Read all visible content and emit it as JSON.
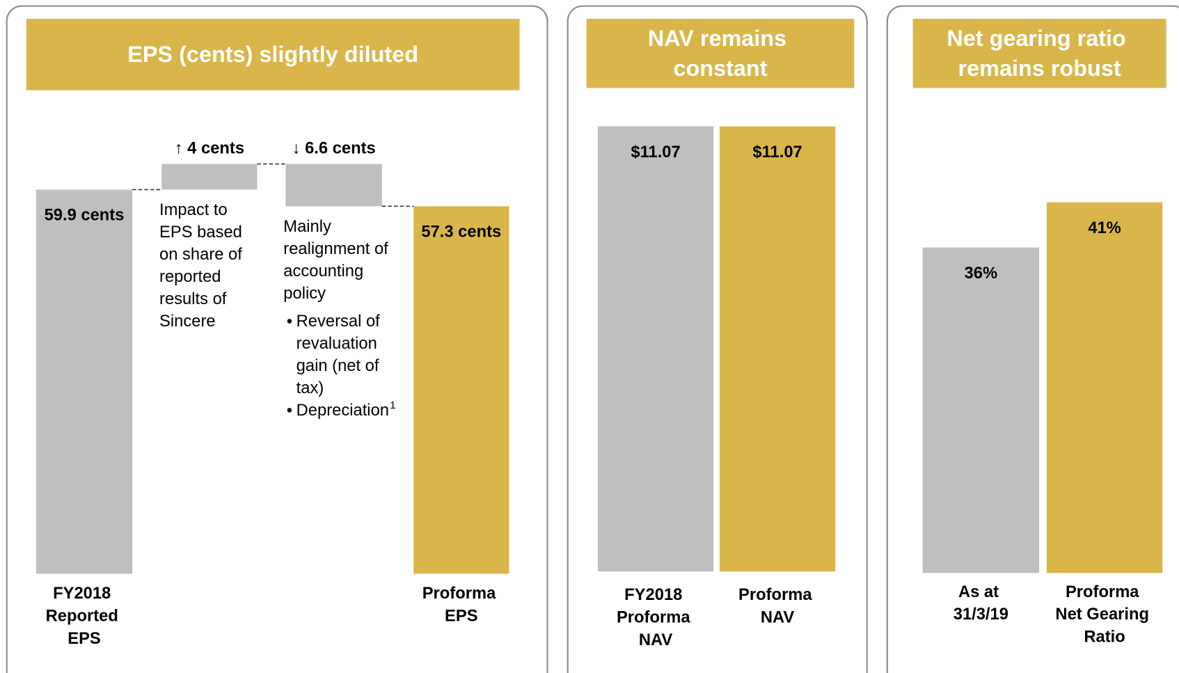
{
  "chart_data": [
    {
      "type": "waterfall",
      "title": "EPS (cents) slightly diluted",
      "categories": [
        "FY2018 Reported EPS",
        null,
        null,
        "Proforma EPS"
      ],
      "values": [
        59.9,
        4,
        -6.6,
        57.3
      ],
      "value_labels": [
        "59.9 cents",
        "↑ 4 cents",
        "↓ 6.6 cents",
        "57.3 cents"
      ],
      "totals": [
        true,
        false,
        false,
        true
      ],
      "colors": [
        "#bfbfbf",
        "#bfbfbf",
        "#bfbfbf",
        "#dab64a"
      ],
      "header_color": "#dab64a",
      "annotations": [
        {
          "text": "Impact to EPS based on share of reported results of Sincere"
        },
        {
          "text": "Mainly realignment of accounting policy",
          "bullets": [
            {
              "text": "Reversal of revaluation gain (net of tax)"
            },
            {
              "text": "Depreciation",
              "footnote": "1"
            }
          ]
        }
      ]
    },
    {
      "type": "bar",
      "title": "NAV remains constant",
      "categories": [
        "FY2018 Proforma NAV",
        "Proforma NAV"
      ],
      "values": [
        11.07,
        11.07
      ],
      "value_labels": [
        "$11.07",
        "$11.07"
      ],
      "colors": [
        "#bfbfbf",
        "#dab64a"
      ],
      "header_color": "#dab64a"
    },
    {
      "type": "bar",
      "title": "Net gearing ratio remains robust",
      "categories": [
        "As at 31/3/19",
        "Proforma Net Gearing Ratio"
      ],
      "values": [
        36,
        41
      ],
      "value_labels": [
        "36%",
        "41%"
      ],
      "colors": [
        "#bfbfbf",
        "#dab64a"
      ],
      "header_color": "#dab64a"
    }
  ]
}
